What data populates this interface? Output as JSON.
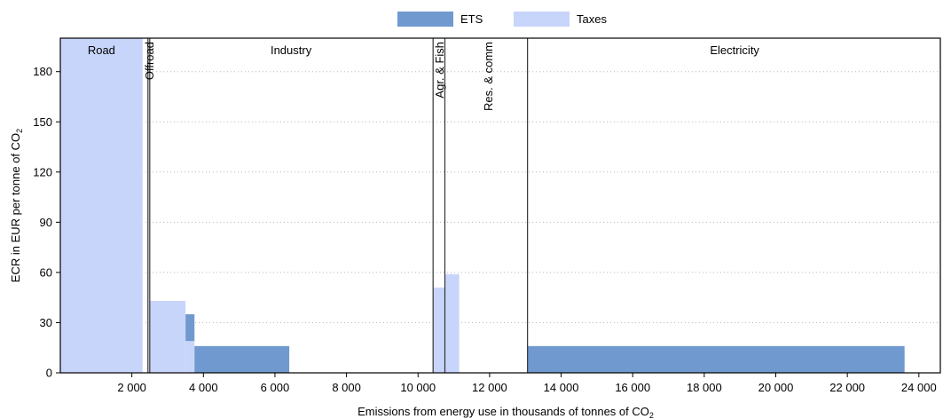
{
  "chart_data": {
    "type": "bar",
    "xlabel": "Emissions from energy use in thousands of tonnes of CO",
    "xlabel_sub": "2",
    "ylabel": "ECR in EUR per tonne of CO",
    "ylabel_sub": "2",
    "xlim": [
      0,
      24600
    ],
    "ylim": [
      0,
      200
    ],
    "x_ticks": [
      2000,
      4000,
      6000,
      8000,
      10000,
      12000,
      14000,
      16000,
      18000,
      20000,
      22000,
      24000
    ],
    "x_tick_labels": [
      "2 000",
      "4 000",
      "6 000",
      "8 000",
      "10 000",
      "12 000",
      "14 000",
      "16 000",
      "18 000",
      "20 000",
      "22 000",
      "24 000"
    ],
    "y_ticks": [
      0,
      30,
      60,
      90,
      120,
      150,
      180
    ],
    "y_tick_labels": [
      "0",
      "30",
      "60",
      "90",
      "120",
      "150",
      "180"
    ],
    "grid": "horizontal-dotted",
    "legend": {
      "placement": "top-center",
      "entries": [
        {
          "name": "ETS",
          "color": "#7099cf"
        },
        {
          "name": "Taxes",
          "color": "#c8d5fb"
        }
      ]
    },
    "sector_dividers": [
      2450,
      2500,
      10420,
      10750,
      13060
    ],
    "sectors": [
      {
        "label": "Road",
        "x": 1150,
        "orientation": "horizontal"
      },
      {
        "label": "Offroad",
        "x": 2475,
        "orientation": "vertical"
      },
      {
        "label": "Industry",
        "x": 6450,
        "orientation": "horizontal"
      },
      {
        "label": "Agr. & Fish",
        "x": 10590,
        "orientation": "vertical"
      },
      {
        "label": "Res. & comm",
        "x": 11950,
        "orientation": "vertical"
      },
      {
        "label": "Electricity",
        "x": 18850,
        "orientation": "horizontal"
      }
    ],
    "segments": [
      {
        "series": "Taxes",
        "x0": 0,
        "x1": 2300,
        "y0": 0,
        "y1": 206
      },
      {
        "series": "Taxes",
        "x0": 2500,
        "x1": 3500,
        "y0": 0,
        "y1": 43
      },
      {
        "series": "Taxes",
        "x0": 3500,
        "x1": 3750,
        "y0": 0,
        "y1": 19
      },
      {
        "series": "ETS",
        "x0": 3500,
        "x1": 3750,
        "y0": 19,
        "y1": 35
      },
      {
        "series": "ETS",
        "x0": 3750,
        "x1": 6400,
        "y0": 0,
        "y1": 16
      },
      {
        "series": "Taxes",
        "x0": 10420,
        "x1": 10750,
        "y0": 0,
        "y1": 51
      },
      {
        "series": "Taxes",
        "x0": 10750,
        "x1": 11150,
        "y0": 0,
        "y1": 59
      },
      {
        "series": "ETS",
        "x0": 13060,
        "x1": 23600,
        "y0": 0,
        "y1": 16
      }
    ]
  }
}
